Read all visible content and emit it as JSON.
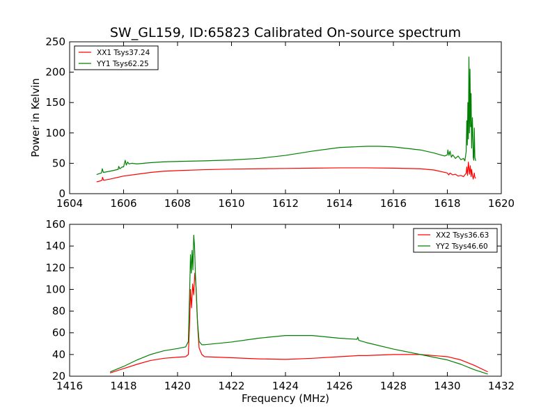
{
  "figure_title": "SW_GL159, ID:65823 Calibrated On-source spectrum",
  "colors": {
    "xx": "#ff0000",
    "yy": "#008000",
    "axes": "#000000",
    "background": "#ffffff"
  },
  "chart_data": [
    {
      "type": "line",
      "title": "SW_GL159, ID:65823 Calibrated On-source spectrum",
      "xlabel": "",
      "ylabel": "Power in Kelvin",
      "xlim": [
        1604,
        1620
      ],
      "ylim": [
        0,
        250
      ],
      "xticks": [
        1604,
        1606,
        1608,
        1610,
        1612,
        1614,
        1616,
        1618,
        1620
      ],
      "yticks": [
        0,
        50,
        100,
        150,
        200,
        250
      ],
      "legend_position": "top-left",
      "series": [
        {
          "name": "XX1 Tsys37.24",
          "color": "#ff0000",
          "points": [
            [
              1605.0,
              19.5
            ],
            [
              1605.1,
              20.5
            ],
            [
              1605.2,
              22
            ],
            [
              1605.22,
              27
            ],
            [
              1605.26,
              22
            ],
            [
              1605.5,
              24
            ],
            [
              1606.0,
              29
            ],
            [
              1606.5,
              32
            ],
            [
              1607.0,
              35
            ],
            [
              1607.5,
              37
            ],
            [
              1608.0,
              38
            ],
            [
              1609.0,
              39.5
            ],
            [
              1610.0,
              40.5
            ],
            [
              1611.0,
              41
            ],
            [
              1612.0,
              41.5
            ],
            [
              1613.0,
              42
            ],
            [
              1614.0,
              42.5
            ],
            [
              1615.0,
              42.5
            ],
            [
              1616.0,
              42
            ],
            [
              1617.0,
              41
            ],
            [
              1617.5,
              39
            ],
            [
              1618.0,
              34
            ],
            [
              1618.05,
              31
            ],
            [
              1618.1,
              34
            ],
            [
              1618.2,
              31
            ],
            [
              1618.3,
              32
            ],
            [
              1618.4,
              29
            ],
            [
              1618.5,
              30
            ],
            [
              1618.6,
              28
            ],
            [
              1618.7,
              34
            ],
            [
              1618.72,
              44
            ],
            [
              1618.75,
              30
            ],
            [
              1618.78,
              52
            ],
            [
              1618.82,
              32
            ],
            [
              1618.85,
              46
            ],
            [
              1618.88,
              28
            ],
            [
              1618.9,
              40
            ],
            [
              1618.93,
              30
            ],
            [
              1618.96,
              24
            ],
            [
              1619.0,
              34
            ],
            [
              1619.02,
              27
            ],
            [
              1619.05,
              25
            ]
          ]
        },
        {
          "name": "YY1 Tsys62.25",
          "color": "#008000",
          "points": [
            [
              1605.0,
              31.5
            ],
            [
              1605.1,
              33
            ],
            [
              1605.18,
              34
            ],
            [
              1605.21,
              41
            ],
            [
              1605.25,
              35
            ],
            [
              1605.5,
              37
            ],
            [
              1605.8,
              40
            ],
            [
              1605.82,
              45
            ],
            [
              1605.86,
              41
            ],
            [
              1605.95,
              44
            ],
            [
              1606.0,
              44
            ],
            [
              1606.06,
              55
            ],
            [
              1606.1,
              47
            ],
            [
              1606.15,
              52
            ],
            [
              1606.2,
              49
            ],
            [
              1606.3,
              50
            ],
            [
              1606.5,
              49
            ],
            [
              1607.0,
              51
            ],
            [
              1607.5,
              52.5
            ],
            [
              1608.0,
              53
            ],
            [
              1609.0,
              54
            ],
            [
              1610.0,
              55.5
            ],
            [
              1611.0,
              58
            ],
            [
              1612.0,
              63
            ],
            [
              1613.0,
              70
            ],
            [
              1614.0,
              76
            ],
            [
              1615.0,
              78
            ],
            [
              1615.5,
              78
            ],
            [
              1616.0,
              77
            ],
            [
              1617.0,
              72
            ],
            [
              1617.5,
              67
            ],
            [
              1617.9,
              62
            ],
            [
              1618.0,
              64
            ],
            [
              1618.02,
              72
            ],
            [
              1618.06,
              63
            ],
            [
              1618.1,
              70
            ],
            [
              1618.15,
              60
            ],
            [
              1618.2,
              64
            ],
            [
              1618.3,
              58
            ],
            [
              1618.4,
              62
            ],
            [
              1618.5,
              56
            ],
            [
              1618.6,
              58
            ],
            [
              1618.65,
              54
            ],
            [
              1618.7,
              70
            ],
            [
              1618.72,
              120
            ],
            [
              1618.74,
              80
            ],
            [
              1618.76,
              150
            ],
            [
              1618.78,
              90
            ],
            [
              1618.8,
              225
            ],
            [
              1618.82,
              100
            ],
            [
              1618.84,
              205
            ],
            [
              1618.86,
              110
            ],
            [
              1618.88,
              165
            ],
            [
              1618.9,
              75
            ],
            [
              1618.93,
              125
            ],
            [
              1618.96,
              60
            ],
            [
              1618.98,
              55
            ],
            [
              1619.0,
              108
            ],
            [
              1619.02,
              60
            ],
            [
              1619.05,
              54
            ]
          ]
        }
      ]
    },
    {
      "type": "line",
      "title": "",
      "xlabel": "Frequency (MHz)",
      "ylabel": "",
      "xlim": [
        1416,
        1432
      ],
      "ylim": [
        20,
        160
      ],
      "xticks": [
        1416,
        1418,
        1420,
        1422,
        1424,
        1426,
        1428,
        1430,
        1432
      ],
      "yticks": [
        20,
        40,
        60,
        80,
        100,
        120,
        140,
        160
      ],
      "legend_position": "top-right",
      "series": [
        {
          "name": "XX2 Tsys36.63",
          "color": "#ff0000",
          "points": [
            [
              1417.5,
              23
            ],
            [
              1418.0,
              27
            ],
            [
              1418.5,
              31
            ],
            [
              1419.0,
              34.5
            ],
            [
              1419.5,
              36.5
            ],
            [
              1420.0,
              37.5
            ],
            [
              1420.3,
              38
            ],
            [
              1420.4,
              40
            ],
            [
              1420.45,
              70
            ],
            [
              1420.48,
              100
            ],
            [
              1420.52,
              83
            ],
            [
              1420.56,
              105
            ],
            [
              1420.6,
              95
            ],
            [
              1420.64,
              115
            ],
            [
              1420.68,
              105
            ],
            [
              1420.72,
              80
            ],
            [
              1420.76,
              60
            ],
            [
              1420.8,
              46
            ],
            [
              1420.9,
              40
            ],
            [
              1421.0,
              38
            ],
            [
              1422.0,
              37
            ],
            [
              1423.0,
              36
            ],
            [
              1424.0,
              35.5
            ],
            [
              1425.0,
              36.5
            ],
            [
              1426.0,
              38
            ],
            [
              1426.7,
              39
            ],
            [
              1427.0,
              39
            ],
            [
              1428.0,
              40
            ],
            [
              1429.0,
              40
            ],
            [
              1430.0,
              38
            ],
            [
              1430.5,
              35
            ],
            [
              1431.0,
              30
            ],
            [
              1431.5,
              24
            ]
          ]
        },
        {
          "name": "YY2 Tsys46.60",
          "color": "#008000",
          "points": [
            [
              1417.5,
              24
            ],
            [
              1418.0,
              29
            ],
            [
              1418.5,
              35
            ],
            [
              1419.0,
              40
            ],
            [
              1419.5,
              43.5
            ],
            [
              1420.0,
              45.5
            ],
            [
              1420.3,
              47
            ],
            [
              1420.4,
              52
            ],
            [
              1420.45,
              100
            ],
            [
              1420.48,
              132
            ],
            [
              1420.51,
              115
            ],
            [
              1420.54,
              136
            ],
            [
              1420.57,
              118
            ],
            [
              1420.6,
              150
            ],
            [
              1420.63,
              140
            ],
            [
              1420.66,
              115
            ],
            [
              1420.7,
              95
            ],
            [
              1420.74,
              70
            ],
            [
              1420.8,
              52
            ],
            [
              1420.9,
              49
            ],
            [
              1421.0,
              49
            ],
            [
              1422.0,
              51.5
            ],
            [
              1423.0,
              55
            ],
            [
              1424.0,
              57.5
            ],
            [
              1425.0,
              57.5
            ],
            [
              1426.0,
              55
            ],
            [
              1426.65,
              54
            ],
            [
              1426.68,
              56
            ],
            [
              1426.72,
              53
            ],
            [
              1427.0,
              51
            ],
            [
              1428.0,
              45
            ],
            [
              1429.0,
              40
            ],
            [
              1430.0,
              35
            ],
            [
              1430.5,
              31
            ],
            [
              1431.0,
              26
            ],
            [
              1431.5,
              22
            ]
          ]
        }
      ]
    }
  ]
}
